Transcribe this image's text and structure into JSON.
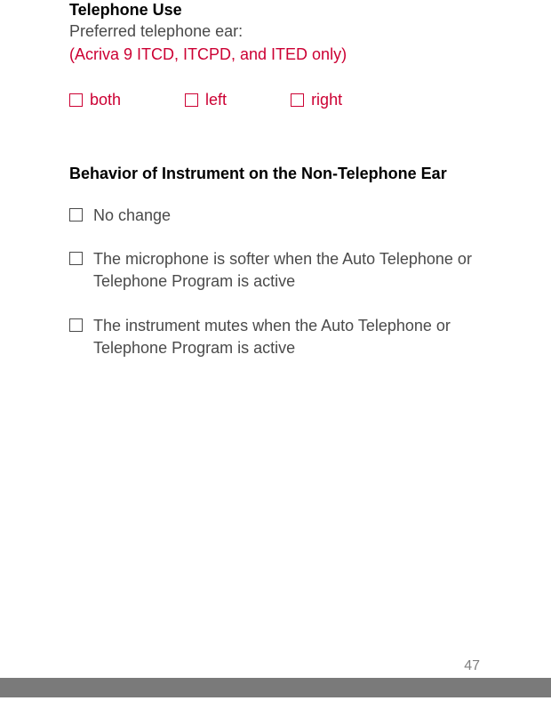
{
  "section1": {
    "title": "Telephone Use",
    "subtitle": "Preferred telephone ear:",
    "note": "(Acriva 9 ITCD, ITCPD, and ITED only)",
    "options": [
      "both",
      "left",
      "right"
    ]
  },
  "section2": {
    "title": "Behavior of Instrument on the Non-Telephone Ear",
    "options": [
      "No change",
      "The microphone is softer when the Auto Telephone or Telephone Program is active",
      "The instrument mutes when the Auto Telephone or Telephone Program is active"
    ]
  },
  "pageNumber": "47",
  "colors": {
    "accent": "#cc0033",
    "bodyText": "#4a4a4a",
    "heading": "#000000",
    "footerBar": "#7a7a7a",
    "pageNum": "#808080"
  }
}
